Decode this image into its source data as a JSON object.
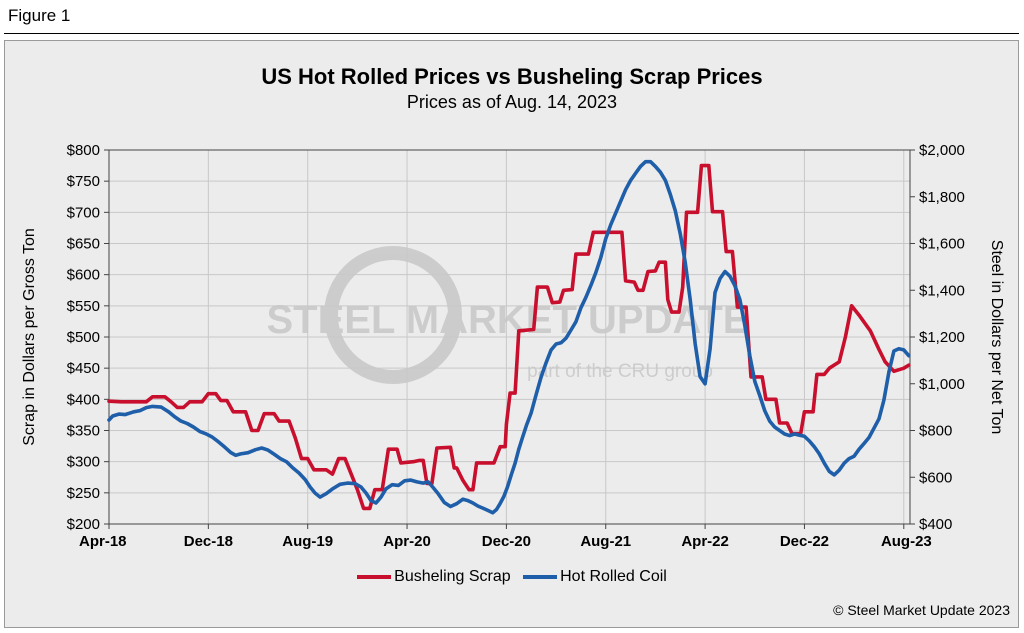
{
  "figure_label": "Figure 1",
  "copyright": "© Steel Market Update 2023",
  "watermark": {
    "brand": "STEEL MARKET UPDATE",
    "tagline": "part of the CRU group"
  },
  "colors": {
    "scrap": "#c8102e",
    "hrc": "#1f5ea8",
    "grid": "#c8c8c8",
    "background": "#ececec"
  },
  "chart_data": {
    "type": "line",
    "title": "US Hot Rolled Prices vs Busheling Scrap Prices",
    "subtitle": "Prices as of Aug. 14, 2023",
    "ylabel_left": "Scrap in Dollars per Gross Ton",
    "ylabel_right": "Steel in Dollars per Net Ton",
    "ylim_left": [
      200,
      800
    ],
    "ylim_right": [
      400,
      2000
    ],
    "left_ticks": [
      "$200",
      "$250",
      "$300",
      "$350",
      "$400",
      "$450",
      "$500",
      "$550",
      "$600",
      "$650",
      "$700",
      "$750",
      "$800"
    ],
    "right_ticks": [
      "$400",
      "$600",
      "$800",
      "$1,000",
      "$1,200",
      "$1,400",
      "$1,600",
      "$1,800",
      "$2,000"
    ],
    "x_tick_labels": [
      "Apr-18",
      "Dec-18",
      "Aug-19",
      "Apr-20",
      "Dec-20",
      "Aug-21",
      "Apr-22",
      "Dec-22",
      "Aug-23"
    ],
    "x_tick_months": [
      0,
      8,
      16,
      24,
      32,
      40,
      48,
      56,
      64
    ],
    "xlim_months": [
      0,
      64.5
    ],
    "x_unit_note": "months since Apr-18",
    "grid": true,
    "legend_position": "bottom-center",
    "series": [
      {
        "name": "Busheling Scrap",
        "axis": "left",
        "color": "#c8102e",
        "points": [
          [
            0,
            397
          ],
          [
            1,
            396
          ],
          [
            2,
            396
          ],
          [
            3,
            396
          ],
          [
            3.5,
            404
          ],
          [
            4.5,
            404
          ],
          [
            5,
            396
          ],
          [
            5.5,
            387
          ],
          [
            6,
            387
          ],
          [
            6.5,
            396
          ],
          [
            7.5,
            396
          ],
          [
            8,
            409
          ],
          [
            8.6,
            409
          ],
          [
            9,
            398
          ],
          [
            9.5,
            398
          ],
          [
            10,
            380
          ],
          [
            11,
            380
          ],
          [
            11.5,
            350
          ],
          [
            12,
            350
          ],
          [
            12.5,
            377
          ],
          [
            13.3,
            377
          ],
          [
            13.7,
            365
          ],
          [
            14.5,
            365
          ],
          [
            15,
            338
          ],
          [
            15.5,
            305
          ],
          [
            16,
            305
          ],
          [
            16.5,
            287
          ],
          [
            17.5,
            287
          ],
          [
            18,
            280
          ],
          [
            18.5,
            305
          ],
          [
            19,
            305
          ],
          [
            19.5,
            280
          ],
          [
            20,
            255
          ],
          [
            20.5,
            225
          ],
          [
            21,
            225
          ],
          [
            21.4,
            255
          ],
          [
            22,
            255
          ],
          [
            22.5,
            320
          ],
          [
            23.2,
            320
          ],
          [
            23.5,
            298
          ],
          [
            24.5,
            300
          ],
          [
            25,
            302
          ],
          [
            25.3,
            302
          ],
          [
            25.6,
            265
          ],
          [
            26,
            265
          ],
          [
            26.4,
            322
          ],
          [
            27.5,
            323
          ],
          [
            27.8,
            290
          ],
          [
            28,
            290
          ],
          [
            28.5,
            270
          ],
          [
            29,
            255
          ],
          [
            29.3,
            255
          ],
          [
            29.6,
            298
          ],
          [
            31,
            298
          ],
          [
            31.5,
            324
          ],
          [
            31.9,
            324
          ],
          [
            32,
            360
          ],
          [
            32.3,
            410
          ],
          [
            32.7,
            410
          ],
          [
            33,
            510
          ],
          [
            34.2,
            512
          ],
          [
            34.5,
            580
          ],
          [
            35.3,
            580
          ],
          [
            35.7,
            555
          ],
          [
            36.3,
            556
          ],
          [
            36.6,
            575
          ],
          [
            37.3,
            576
          ],
          [
            37.6,
            633
          ],
          [
            38.6,
            633
          ],
          [
            39,
            668
          ],
          [
            41.3,
            668
          ],
          [
            41.6,
            590
          ],
          [
            42.3,
            588
          ],
          [
            42.6,
            575
          ],
          [
            43,
            575
          ],
          [
            43.4,
            605
          ],
          [
            44,
            606
          ],
          [
            44.3,
            620
          ],
          [
            44.8,
            620
          ],
          [
            45,
            560
          ],
          [
            45.3,
            540
          ],
          [
            45.9,
            540
          ],
          [
            46.2,
            580
          ],
          [
            46.5,
            700
          ],
          [
            47.4,
            700
          ],
          [
            47.7,
            775
          ],
          [
            48.3,
            775
          ],
          [
            48.6,
            701
          ],
          [
            49.4,
            701
          ],
          [
            49.7,
            637
          ],
          [
            50.2,
            637
          ],
          [
            50.6,
            548
          ],
          [
            51.3,
            548
          ],
          [
            51.7,
            436
          ],
          [
            52.6,
            436
          ],
          [
            52.9,
            400
          ],
          [
            53.7,
            400
          ],
          [
            54,
            362
          ],
          [
            54.6,
            362
          ],
          [
            55,
            345
          ],
          [
            55.7,
            345
          ],
          [
            56,
            380
          ],
          [
            56.7,
            380
          ],
          [
            57,
            440
          ],
          [
            57.6,
            440
          ],
          [
            58,
            450
          ],
          [
            58.8,
            460
          ],
          [
            59.3,
            500
          ],
          [
            59.8,
            550
          ],
          [
            60.4,
            535
          ],
          [
            61.3,
            510
          ],
          [
            62,
            480
          ],
          [
            62.5,
            460
          ],
          [
            63.2,
            445
          ],
          [
            64,
            450
          ],
          [
            64.4,
            455
          ]
        ]
      },
      {
        "name": "Hot Rolled Coil",
        "axis": "right",
        "color": "#1f5ea8",
        "points": [
          [
            0,
            845
          ],
          [
            0.3,
            862
          ],
          [
            0.8,
            870
          ],
          [
            1.3,
            868
          ],
          [
            2,
            880
          ],
          [
            2.5,
            885
          ],
          [
            3,
            898
          ],
          [
            3.5,
            903
          ],
          [
            4.2,
            900
          ],
          [
            4.8,
            880
          ],
          [
            5.3,
            858
          ],
          [
            5.8,
            840
          ],
          [
            6.3,
            830
          ],
          [
            6.8,
            815
          ],
          [
            7.3,
            796
          ],
          [
            7.8,
            786
          ],
          [
            8.3,
            772
          ],
          [
            8.8,
            752
          ],
          [
            9.3,
            730
          ],
          [
            9.8,
            706
          ],
          [
            10.2,
            694
          ],
          [
            10.6,
            700
          ],
          [
            11.2,
            705
          ],
          [
            11.8,
            718
          ],
          [
            12.3,
            725
          ],
          [
            12.8,
            716
          ],
          [
            13.3,
            698
          ],
          [
            13.8,
            680
          ],
          [
            14.3,
            666
          ],
          [
            14.8,
            640
          ],
          [
            15.3,
            618
          ],
          [
            15.8,
            590
          ],
          [
            16.2,
            558
          ],
          [
            16.6,
            532
          ],
          [
            17,
            515
          ],
          [
            17.5,
            530
          ],
          [
            18,
            550
          ],
          [
            18.6,
            570
          ],
          [
            19.2,
            575
          ],
          [
            19.8,
            573
          ],
          [
            20.3,
            558
          ],
          [
            20.7,
            532
          ],
          [
            21.1,
            500
          ],
          [
            21.5,
            490
          ],
          [
            21.9,
            515
          ],
          [
            22.3,
            550
          ],
          [
            22.8,
            568
          ],
          [
            23.3,
            565
          ],
          [
            23.8,
            585
          ],
          [
            24.3,
            588
          ],
          [
            24.8,
            580
          ],
          [
            25.3,
            575
          ],
          [
            25.7,
            580
          ],
          [
            26.1,
            556
          ],
          [
            26.5,
            530
          ],
          [
            27,
            492
          ],
          [
            27.5,
            475
          ],
          [
            28,
            487
          ],
          [
            28.5,
            506
          ],
          [
            28.9,
            500
          ],
          [
            29.3,
            490
          ],
          [
            29.7,
            477
          ],
          [
            30.1,
            468
          ],
          [
            30.5,
            458
          ],
          [
            30.9,
            448
          ],
          [
            31.2,
            462
          ],
          [
            31.5,
            488
          ],
          [
            31.8,
            518
          ],
          [
            32.1,
            560
          ],
          [
            32.4,
            612
          ],
          [
            32.7,
            660
          ],
          [
            33,
            720
          ],
          [
            33.3,
            770
          ],
          [
            33.6,
            820
          ],
          [
            34,
            876
          ],
          [
            34.4,
            955
          ],
          [
            34.8,
            1030
          ],
          [
            35.2,
            1090
          ],
          [
            35.6,
            1145
          ],
          [
            36,
            1170
          ],
          [
            36.4,
            1175
          ],
          [
            36.8,
            1195
          ],
          [
            37.2,
            1230
          ],
          [
            37.6,
            1265
          ],
          [
            38,
            1325
          ],
          [
            38.4,
            1370
          ],
          [
            38.8,
            1420
          ],
          [
            39.2,
            1475
          ],
          [
            39.6,
            1540
          ],
          [
            40,
            1620
          ],
          [
            40.4,
            1680
          ],
          [
            40.8,
            1730
          ],
          [
            41.2,
            1780
          ],
          [
            41.6,
            1830
          ],
          [
            42,
            1870
          ],
          [
            42.4,
            1900
          ],
          [
            42.8,
            1930
          ],
          [
            43.2,
            1950
          ],
          [
            43.6,
            1950
          ],
          [
            44,
            1930
          ],
          [
            44.4,
            1905
          ],
          [
            44.8,
            1870
          ],
          [
            45.2,
            1810
          ],
          [
            45.6,
            1740
          ],
          [
            46,
            1640
          ],
          [
            46.4,
            1520
          ],
          [
            46.8,
            1360
          ],
          [
            47.2,
            1170
          ],
          [
            47.6,
            1030
          ],
          [
            48,
            1000
          ],
          [
            48.4,
            1150
          ],
          [
            48.8,
            1390
          ],
          [
            49.2,
            1450
          ],
          [
            49.6,
            1480
          ],
          [
            50,
            1460
          ],
          [
            50.4,
            1420
          ],
          [
            50.8,
            1360
          ],
          [
            51.2,
            1250
          ],
          [
            51.6,
            1120
          ],
          [
            52,
            1010
          ],
          [
            52.4,
            950
          ],
          [
            52.8,
            885
          ],
          [
            53.2,
            840
          ],
          [
            53.6,
            815
          ],
          [
            54,
            800
          ],
          [
            54.4,
            785
          ],
          [
            54.8,
            778
          ],
          [
            55.2,
            785
          ],
          [
            55.6,
            780
          ],
          [
            56,
            775
          ],
          [
            56.4,
            755
          ],
          [
            56.8,
            730
          ],
          [
            57.2,
            700
          ],
          [
            57.6,
            660
          ],
          [
            58,
            625
          ],
          [
            58.4,
            610
          ],
          [
            58.8,
            630
          ],
          [
            59.2,
            660
          ],
          [
            59.6,
            680
          ],
          [
            60,
            690
          ],
          [
            60.4,
            720
          ],
          [
            60.8,
            745
          ],
          [
            61.2,
            770
          ],
          [
            61.6,
            810
          ],
          [
            62,
            850
          ],
          [
            62.4,
            930
          ],
          [
            62.8,
            1050
          ],
          [
            63.2,
            1140
          ],
          [
            63.6,
            1150
          ],
          [
            64,
            1145
          ],
          [
            64.4,
            1120
          ]
        ]
      }
    ]
  }
}
